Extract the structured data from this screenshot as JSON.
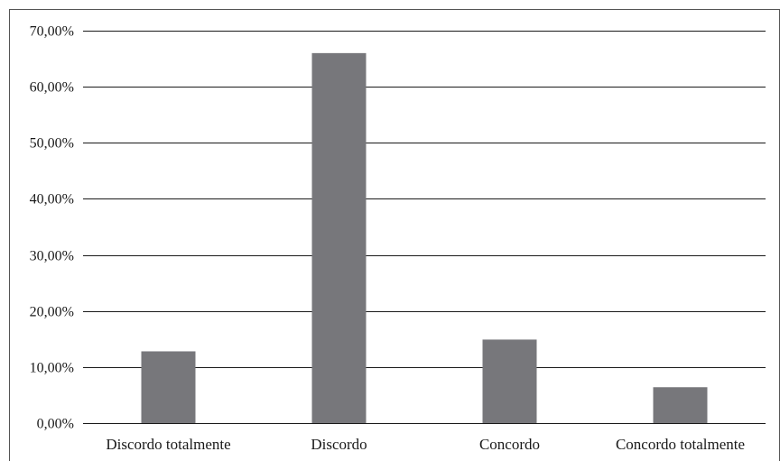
{
  "chart_data": {
    "type": "bar",
    "title": "",
    "xlabel": "",
    "ylabel": "",
    "categories": [
      "Discordo totalmente",
      "Discordo",
      "Concordo",
      "Concordo totalmente"
    ],
    "values": [
      12.8,
      66.0,
      14.9,
      6.4
    ],
    "ylim": [
      0,
      70
    ],
    "yticks": [
      0,
      10,
      20,
      30,
      40,
      50,
      60,
      70
    ],
    "ytick_labels": [
      "0,00%",
      "10,00%",
      "20,00%",
      "30,00%",
      "40,00%",
      "50,00%",
      "60,00%",
      "70,00%"
    ],
    "grid": true,
    "legend": "none",
    "colors": {
      "bar": "#77777b",
      "grid": "#1a1a1a",
      "frame": "#555555",
      "text": "#1a1a1a"
    }
  }
}
